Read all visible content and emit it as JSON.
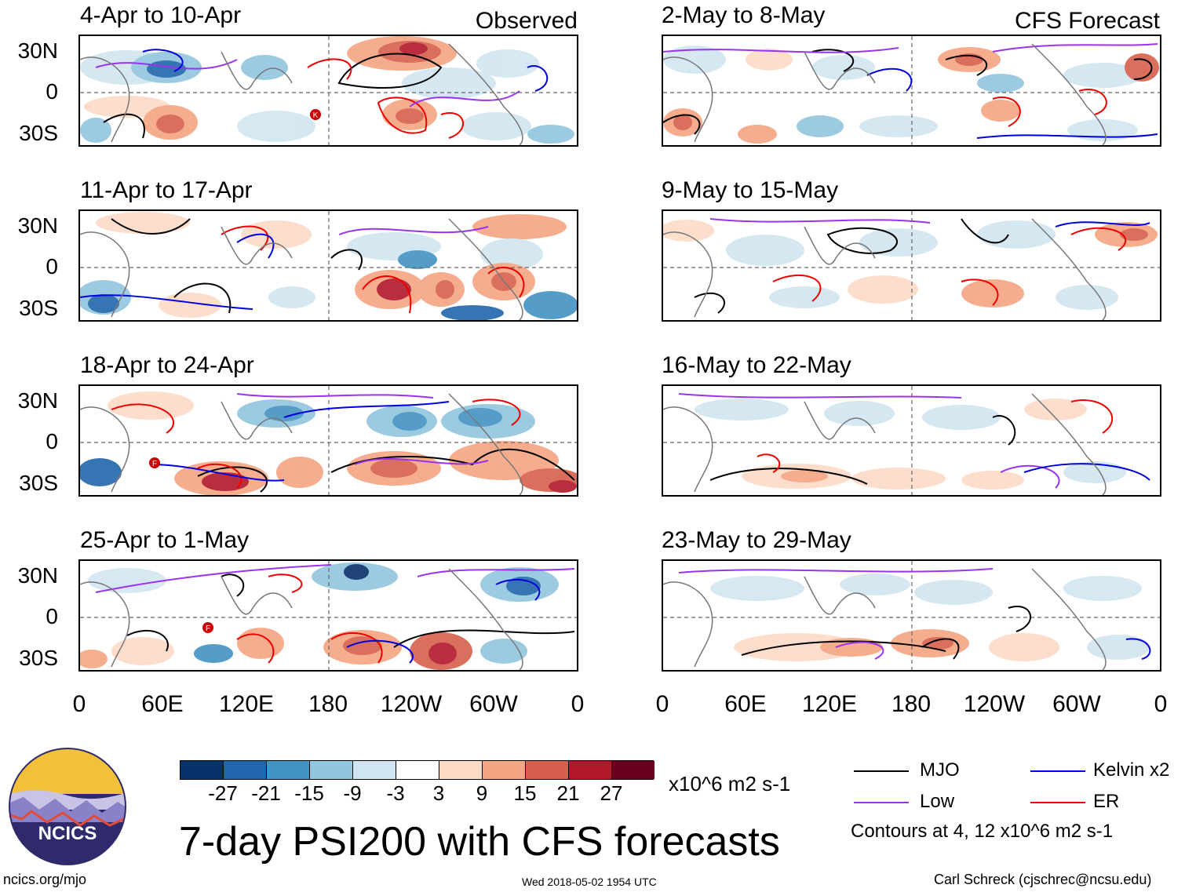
{
  "panels_left": [
    {
      "title": "4-Apr to 10-Apr"
    },
    {
      "title": "11-Apr to 17-Apr"
    },
    {
      "title": "18-Apr to 24-Apr"
    },
    {
      "title": "25-Apr to 1-May"
    }
  ],
  "panels_right": [
    {
      "title": "2-May to 8-May"
    },
    {
      "title": "9-May to 15-May"
    },
    {
      "title": "16-May to 22-May"
    },
    {
      "title": "23-May to 29-May"
    }
  ],
  "column_labels": {
    "left": "Observed",
    "right": "CFS Forecast"
  },
  "lat_labels": [
    "30N",
    "0",
    "30S"
  ],
  "lon_labels": [
    "0",
    "60E",
    "120E",
    "180",
    "120W",
    "60W",
    "0"
  ],
  "colorbar": {
    "colors": [
      "#08306b",
      "#2166ac",
      "#4393c3",
      "#92c5de",
      "#d1e5f0",
      "#ffffff",
      "#fddbc7",
      "#f4a582",
      "#d6604d",
      "#b2182b",
      "#67001f"
    ],
    "ticks": [
      "-27",
      "-21",
      "-15",
      "-9",
      "-3",
      "3",
      "9",
      "15",
      "21",
      "27"
    ],
    "units": "x10^6 m2 s-1"
  },
  "legend": {
    "items": [
      {
        "label": "MJO",
        "color": "#000000"
      },
      {
        "label": "Kelvin x2",
        "color": "#0000dd"
      },
      {
        "label": "Low",
        "color": "#9933ee"
      },
      {
        "label": "ER",
        "color": "#ee0000"
      }
    ],
    "note": "Contours at 4, 12 x10^6 m2 s-1"
  },
  "title": "7-day PSI200 with CFS forecasts",
  "footer": {
    "logo_text": "NCICS",
    "url": "ncics.org/mjo",
    "timestamp": "Wed 2018-05-02 1954 UTC",
    "credit": "Carl Schreck (cjschrec@ncsu.edu)"
  },
  "storm_markers": [
    "K",
    "F",
    "F"
  ]
}
